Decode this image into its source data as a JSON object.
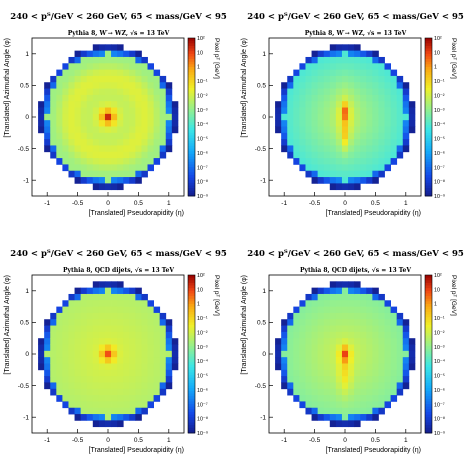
{
  "colors": {
    "frame": "#000000",
    "palette": "rainbow"
  },
  "common": {
    "xlabel": "[Translated] Pseudorapidity (η)",
    "ylabel": "[Translated] Azimuthal Angle (φ)",
    "zlabel": "Pixel pᵀ [GeV]",
    "x_ticks": [
      "-1",
      "-0.5",
      "0",
      "0.5",
      "1"
    ],
    "y_ticks": [
      "-1",
      "-0.5",
      "0",
      "0.5",
      "1"
    ],
    "z_ticks": [
      "10²",
      "10",
      "1",
      "10⁻¹",
      "10⁻²",
      "10⁻³",
      "10⁻⁴",
      "10⁻⁵",
      "10⁻⁶",
      "10⁻⁷",
      "10⁻⁸",
      "10⁻⁹"
    ]
  },
  "chart_data": [
    {
      "type": "heatmap",
      "title": "240 < pᵀ/GeV < 260 GeV, 65 < mass/GeV < 95",
      "subtitle": "Pythia 8, W′→ WZ, √s = 13 TeV",
      "xlim": [
        -1.25,
        1.25
      ],
      "ylim": [
        -1.25,
        1.25
      ],
      "zlim_log10": [
        -9,
        2
      ],
      "pattern": "rings"
    },
    {
      "type": "heatmap",
      "title": "240 < pᵀ/GeV < 260 GeV, 65 < mass/GeV < 95",
      "subtitle": "Pythia 8, W′→ WZ, √s = 13 TeV",
      "xlim": [
        -1.25,
        1.25
      ],
      "ylim": [
        -1.25,
        1.25
      ],
      "zlim_log10": [
        -9,
        2
      ],
      "pattern": "two-prong"
    },
    {
      "type": "heatmap",
      "title": "240 < pᵀ/GeV < 260 GeV, 65 < mass/GeV < 95",
      "subtitle": "Pythia 8, QCD dijets, √s = 13 TeV",
      "xlim": [
        -1.25,
        1.25
      ],
      "ylim": [
        -1.25,
        1.25
      ],
      "zlim_log10": [
        -9,
        2
      ],
      "pattern": "single-core"
    },
    {
      "type": "heatmap",
      "title": "240 < pᵀ/GeV < 260 GeV, 65 < mass/GeV < 95",
      "subtitle": "Pythia 8, QCD dijets, √s = 13 TeV",
      "xlim": [
        -1.25,
        1.25
      ],
      "ylim": [
        -1.25,
        1.25
      ],
      "zlim_log10": [
        -9,
        2
      ],
      "pattern": "elongated"
    }
  ]
}
